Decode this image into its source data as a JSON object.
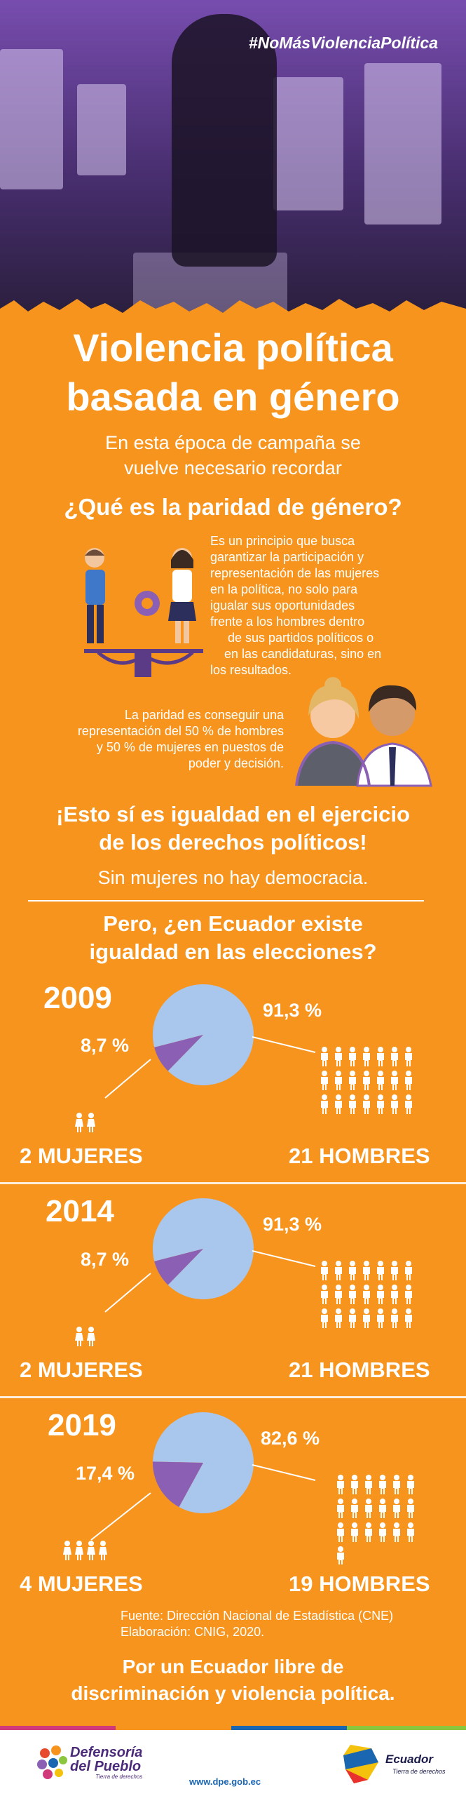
{
  "hashtag": "#NoMásViolenciaPolítica",
  "title_line1": "Violencia política",
  "title_line2": "basada en género",
  "subtitle_line1": "En esta época de campaña se",
  "subtitle_line2": "vuelve necesario recordar",
  "question1": "¿Qué es la paridad de género?",
  "paridad_text": [
    "Es un principio que busca",
    "garantizar la participación y",
    "representación de las mujeres",
    "en la política, no solo para",
    "igualar sus oportunidades",
    "frente a los hombres dentro",
    "de sus partidos políticos o",
    "en las candidaturas, sino en",
    "los resultados."
  ],
  "paridad50_text": [
    "La paridad es conseguir una",
    "representación del 50 % de hombres",
    "y 50 % de mujeres en puestos de",
    "poder y decisión."
  ],
  "igualdad_line1": "¡Esto sí es igualdad en el ejercicio",
  "igualdad_line2": "de los derechos políticos!",
  "democracia": "Sin mujeres no hay democracia.",
  "question2_line1": "Pero, ¿en Ecuador existe",
  "question2_line2": "igualdad en las elecciones?",
  "colors": {
    "background": "#f7941d",
    "pie_men": "#a9c6ec",
    "pie_women": "#8b5fb3",
    "hero": "#6b3fa0"
  },
  "chart_data": [
    {
      "type": "pie",
      "year": "2009",
      "labels": [
        "Mujeres",
        "Hombres"
      ],
      "values": [
        8.7,
        91.3
      ],
      "value_labels": [
        "8,7 %",
        "91,3 %"
      ],
      "women_label": "2 MUJERES",
      "men_label": "21 HOMBRES",
      "women_count": 2,
      "men_count": 21
    },
    {
      "type": "pie",
      "year": "2014",
      "labels": [
        "Mujeres",
        "Hombres"
      ],
      "values": [
        8.7,
        91.3
      ],
      "value_labels": [
        "8,7 %",
        "91,3 %"
      ],
      "women_label": "2 MUJERES",
      "men_label": "21 HOMBRES",
      "women_count": 2,
      "men_count": 21
    },
    {
      "type": "pie",
      "year": "2019",
      "labels": [
        "Mujeres",
        "Hombres"
      ],
      "values": [
        17.4,
        82.6
      ],
      "value_labels": [
        "17,4 %",
        "82,6 %"
      ],
      "women_label": "4 MUJERES",
      "men_label": "19 HOMBRES",
      "women_count": 4,
      "men_count": 19
    }
  ],
  "source_line1": "Fuente: Dirección Nacional de Estadística (CNE)",
  "source_line2": "Elaboración: CNIG, 2020.",
  "closing_line1": "Por un Ecuador libre de",
  "closing_line2": "discriminación y violencia política.",
  "footer": {
    "logo_left_line1": "Defensoría",
    "logo_left_line2": "del Pueblo",
    "logo_left_tagline": "Tierra de derechos",
    "url": "www.dpe.gob.ec",
    "logo_right_name": "Ecuador",
    "logo_right_tagline": "Tierra de derechos"
  }
}
